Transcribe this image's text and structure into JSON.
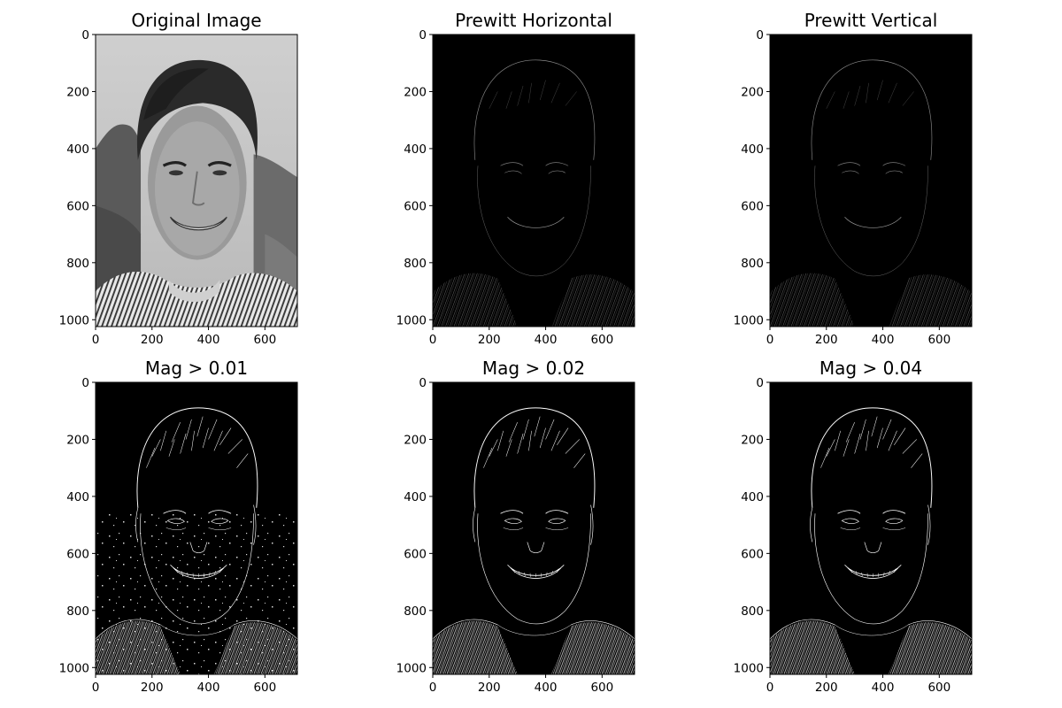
{
  "figure": {
    "axes_extent": {
      "x": [
        0,
        715
      ],
      "y": [
        0,
        1024
      ]
    },
    "panels": [
      {
        "id": "original",
        "title": "Original Image",
        "render": "original",
        "x_ticks": [
          0,
          200,
          400,
          600
        ],
        "y_ticks": [
          0,
          200,
          400,
          600,
          800,
          1000
        ],
        "x_tick_labels": [
          "0",
          "200",
          "400",
          "600"
        ],
        "y_tick_labels": [
          "0",
          "200",
          "400",
          "600",
          "800",
          "1000"
        ]
      },
      {
        "id": "prewitt-horizontal",
        "title": "Prewitt Horizontal",
        "render": "edges-faint",
        "x_ticks": [
          0,
          200,
          400,
          600
        ],
        "y_ticks": [
          0,
          200,
          400,
          600,
          800,
          1000
        ],
        "x_tick_labels": [
          "0",
          "200",
          "400",
          "600"
        ],
        "y_tick_labels": [
          "0",
          "200",
          "400",
          "600",
          "800",
          "1000"
        ]
      },
      {
        "id": "prewitt-vertical",
        "title": "Prewitt Vertical",
        "render": "edges-faint",
        "x_ticks": [
          0,
          200,
          400,
          600
        ],
        "y_ticks": [
          0,
          200,
          400,
          600,
          800,
          1000
        ],
        "x_tick_labels": [
          "0",
          "200",
          "400",
          "600"
        ],
        "y_tick_labels": [
          "0",
          "200",
          "400",
          "600",
          "800",
          "1000"
        ]
      },
      {
        "id": "mag-001",
        "title": "Mag > 0.01",
        "render": "edges-thresh",
        "x_ticks": [
          0,
          200,
          400,
          600
        ],
        "y_ticks": [
          0,
          200,
          400,
          600,
          800,
          1000
        ],
        "x_tick_labels": [
          "0",
          "200",
          "400",
          "600"
        ],
        "y_tick_labels": [
          "0",
          "200",
          "400",
          "600",
          "800",
          "1000"
        ]
      },
      {
        "id": "mag-002",
        "title": "Mag > 0.02",
        "render": "edges-thresh",
        "x_ticks": [
          0,
          200,
          400,
          600
        ],
        "y_ticks": [
          0,
          200,
          400,
          600,
          800,
          1000
        ],
        "x_tick_labels": [
          "0",
          "200",
          "400",
          "600"
        ],
        "y_tick_labels": [
          "0",
          "200",
          "400",
          "600",
          "800",
          "1000"
        ]
      },
      {
        "id": "mag-004",
        "title": "Mag > 0.04",
        "render": "edges-thresh",
        "x_ticks": [
          0,
          200,
          400,
          600
        ],
        "y_ticks": [
          0,
          200,
          400,
          600,
          800,
          1000
        ],
        "x_tick_labels": [
          "0",
          "200",
          "400",
          "600"
        ],
        "y_tick_labels": [
          "0",
          "200",
          "400",
          "600",
          "800",
          "1000"
        ]
      }
    ]
  }
}
